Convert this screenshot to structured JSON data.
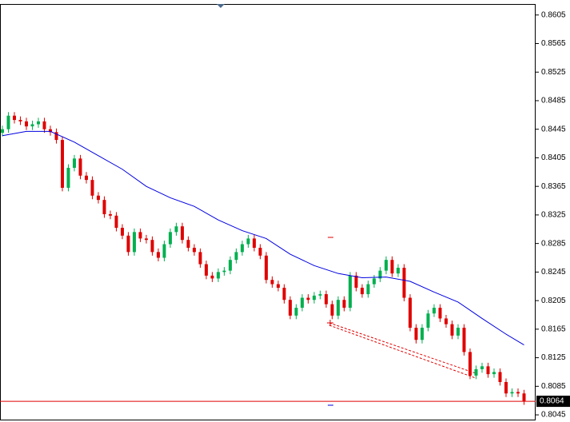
{
  "chart_data": {
    "type": "candlestick",
    "ylim": [
      0.8035,
      0.8626
    ],
    "yticks": [
      0.8605,
      0.8565,
      0.8525,
      0.8485,
      0.8445,
      0.8405,
      0.8365,
      0.8325,
      0.8285,
      0.8245,
      0.8205,
      0.8165,
      0.8125,
      0.8085,
      0.8045
    ],
    "up_color": "#00b050",
    "down_color": "#e00000",
    "open": [
      0.844,
      0.8445,
      0.8464,
      0.8458,
      0.8456,
      0.8449,
      0.8452,
      0.8456,
      0.8445,
      0.8441,
      0.843,
      0.8363,
      0.8391,
      0.8404,
      0.838,
      0.8374,
      0.8352,
      0.8346,
      0.8326,
      0.8324,
      0.8307,
      0.8296,
      0.8273,
      0.8301,
      0.8292,
      0.829,
      0.8273,
      0.8265,
      0.8284,
      0.8301,
      0.8309,
      0.829,
      0.8279,
      0.8273,
      0.8256,
      0.824,
      0.8236,
      0.8245,
      0.8247,
      0.8262,
      0.8273,
      0.8284,
      0.8292,
      0.8279,
      0.8268,
      0.8234,
      0.8228,
      0.8223,
      0.8206,
      0.8184,
      0.8195,
      0.8209,
      0.8206,
      0.8212,
      0.8214,
      0.82,
      0.8184,
      0.8206,
      0.8195,
      0.824,
      0.8223,
      0.8214,
      0.8228,
      0.8236,
      0.8247,
      0.8262,
      0.8243,
      0.8251,
      0.8209,
      0.8167,
      0.815,
      0.8167,
      0.8187,
      0.8195,
      0.818,
      0.8172,
      0.8156,
      0.8167,
      0.8133,
      0.81,
      0.8109,
      0.8113,
      0.8102,
      0.8105,
      0.8091,
      0.8075,
      0.8077,
      0.8075
    ],
    "high": [
      0.845,
      0.8469,
      0.8469,
      0.8463,
      0.8461,
      0.8457,
      0.8461,
      0.8461,
      0.845,
      0.8446,
      0.8435,
      0.8396,
      0.8409,
      0.8409,
      0.8385,
      0.8379,
      0.8357,
      0.8351,
      0.8331,
      0.8329,
      0.8312,
      0.8301,
      0.8306,
      0.8306,
      0.8297,
      0.8295,
      0.8278,
      0.8289,
      0.8306,
      0.8314,
      0.8314,
      0.8295,
      0.8284,
      0.8278,
      0.8261,
      0.8245,
      0.825,
      0.8252,
      0.8267,
      0.8278,
      0.8289,
      0.8297,
      0.8297,
      0.8284,
      0.8273,
      0.8239,
      0.8233,
      0.8228,
      0.8211,
      0.82,
      0.8214,
      0.8214,
      0.8217,
      0.8219,
      0.8219,
      0.8205,
      0.8211,
      0.8211,
      0.8245,
      0.8245,
      0.8228,
      0.8233,
      0.8241,
      0.8252,
      0.8267,
      0.8267,
      0.8256,
      0.8256,
      0.8214,
      0.8172,
      0.8172,
      0.8192,
      0.82,
      0.82,
      0.8185,
      0.8177,
      0.8172,
      0.8172,
      0.8138,
      0.8114,
      0.8118,
      0.8118,
      0.811,
      0.811,
      0.8096,
      0.8082,
      0.8082,
      0.808
    ],
    "low": [
      0.8435,
      0.844,
      0.8453,
      0.8451,
      0.8444,
      0.8444,
      0.8447,
      0.844,
      0.8436,
      0.8425,
      0.8358,
      0.8358,
      0.8386,
      0.8375,
      0.8369,
      0.8347,
      0.8341,
      0.8321,
      0.8319,
      0.8302,
      0.8291,
      0.8268,
      0.8268,
      0.8287,
      0.8285,
      0.8268,
      0.826,
      0.826,
      0.8279,
      0.8296,
      0.8285,
      0.8274,
      0.8268,
      0.8251,
      0.8235,
      0.8231,
      0.8231,
      0.824,
      0.8242,
      0.8257,
      0.8268,
      0.8279,
      0.8274,
      0.8263,
      0.8229,
      0.8223,
      0.8218,
      0.8201,
      0.8179,
      0.8179,
      0.819,
      0.8201,
      0.8201,
      0.8207,
      0.8195,
      0.8179,
      0.8179,
      0.819,
      0.819,
      0.8218,
      0.8209,
      0.8209,
      0.8223,
      0.8231,
      0.8242,
      0.8238,
      0.8238,
      0.8204,
      0.8162,
      0.8145,
      0.8145,
      0.8162,
      0.8182,
      0.8175,
      0.8167,
      0.8151,
      0.8151,
      0.8128,
      0.8095,
      0.8095,
      0.8104,
      0.8097,
      0.8097,
      0.8086,
      0.807,
      0.807,
      0.807,
      0.8059
    ],
    "close": [
      0.8445,
      0.8464,
      0.8458,
      0.8456,
      0.8449,
      0.8452,
      0.8456,
      0.8445,
      0.8441,
      0.843,
      0.8363,
      0.8391,
      0.8404,
      0.838,
      0.8374,
      0.8352,
      0.8346,
      0.8326,
      0.8324,
      0.8307,
      0.8296,
      0.8273,
      0.8301,
      0.8292,
      0.829,
      0.8273,
      0.8265,
      0.8284,
      0.8301,
      0.8309,
      0.829,
      0.8279,
      0.8273,
      0.8256,
      0.824,
      0.8236,
      0.8245,
      0.8247,
      0.8262,
      0.8273,
      0.8284,
      0.8292,
      0.8279,
      0.8268,
      0.8234,
      0.8228,
      0.8223,
      0.8206,
      0.8184,
      0.8195,
      0.8209,
      0.8206,
      0.8212,
      0.8214,
      0.82,
      0.8184,
      0.8206,
      0.8195,
      0.824,
      0.8223,
      0.8214,
      0.8228,
      0.8236,
      0.8247,
      0.8262,
      0.8243,
      0.8251,
      0.8209,
      0.8167,
      0.815,
      0.8167,
      0.8187,
      0.8195,
      0.818,
      0.8172,
      0.8156,
      0.8167,
      0.8133,
      0.81,
      0.8109,
      0.8113,
      0.8102,
      0.8105,
      0.8091,
      0.8075,
      0.8077,
      0.8075,
      0.8064
    ],
    "ma": {
      "color": "#0000e0",
      "x": [
        0,
        4,
        8,
        12,
        16,
        20,
        24,
        28,
        32,
        36,
        40,
        44,
        48,
        52,
        56,
        60,
        64,
        68,
        72,
        76,
        80,
        84,
        87
      ],
      "values": [
        0.8436,
        0.8442,
        0.8442,
        0.8427,
        0.8408,
        0.8389,
        0.8365,
        0.8349,
        0.8337,
        0.8318,
        0.8303,
        0.8292,
        0.827,
        0.8254,
        0.8243,
        0.8237,
        0.8238,
        0.8232,
        0.8217,
        0.8203,
        0.818,
        0.8158,
        0.8143
      ]
    },
    "current_price": 0.8064,
    "current_price_color": "#e00000"
  }
}
